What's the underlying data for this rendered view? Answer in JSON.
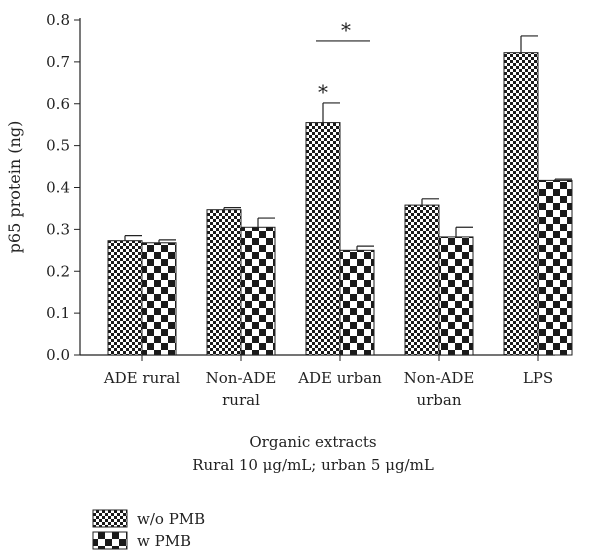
{
  "chart_data": {
    "type": "bar",
    "categories": [
      [
        "ADE rural"
      ],
      [
        "Non-ADE",
        "rural"
      ],
      [
        "ADE urban"
      ],
      [
        "Non-ADE",
        "urban"
      ],
      [
        "LPS"
      ]
    ],
    "series": [
      {
        "name": "w/o PMB",
        "values": [
          0.273,
          0.347,
          0.555,
          0.358,
          0.722
        ],
        "errors": [
          0.012,
          0.005,
          0.047,
          0.015,
          0.04
        ],
        "pattern": "fine-checker"
      },
      {
        "name": "w PMB",
        "values": [
          0.268,
          0.305,
          0.25,
          0.282,
          0.417
        ],
        "errors": [
          0.007,
          0.022,
          0.01,
          0.023,
          0.003
        ],
        "pattern": "coarse-checker"
      }
    ],
    "ylabel": "p65 protein (ng)",
    "xlabel_lines": [
      "Organic extracts",
      "Rural 10 μg/mL; urban 5 μg/mL"
    ],
    "ylim": [
      0,
      0.8
    ],
    "yticks": [
      "0.0",
      "0.1",
      "0.2",
      "0.3",
      "0.4",
      "0.5",
      "0.6",
      "0.7",
      "0.8"
    ],
    "annotations": [
      {
        "text": "*",
        "kind": "above-bar",
        "category_index": 2,
        "series_index": 0
      },
      {
        "text": "*",
        "kind": "bracket",
        "category_index": 2
      }
    ],
    "legend_position": "bottom-left",
    "grid": false
  }
}
